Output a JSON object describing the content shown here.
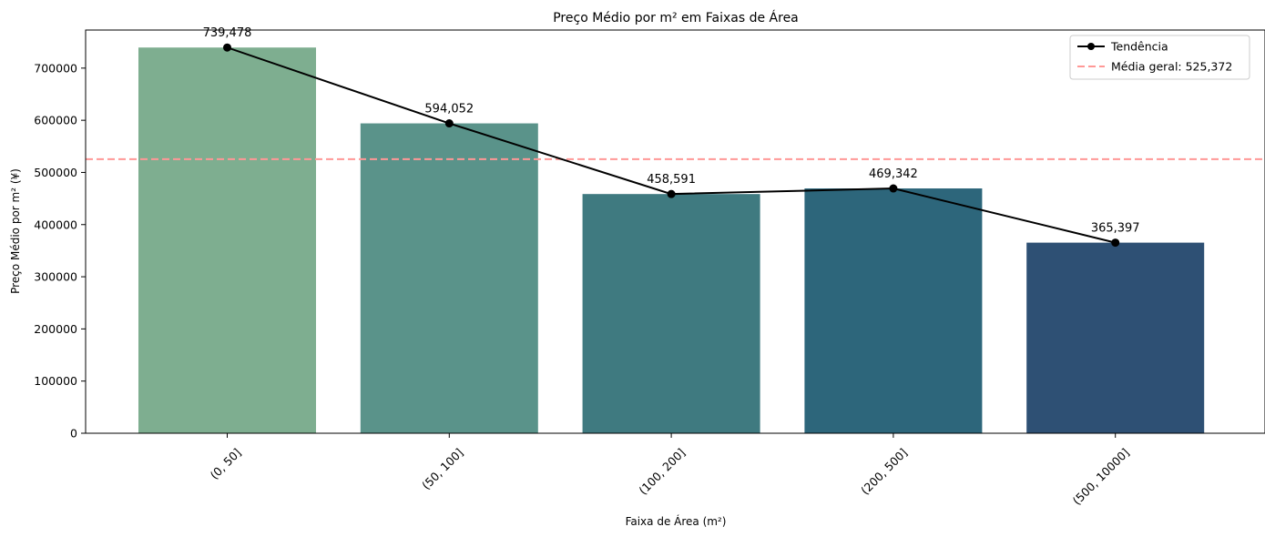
{
  "chart_data": {
    "type": "bar",
    "title": "Preço Médio por m² em Faixas de Área",
    "xlabel": "Faixa de Área (m²)",
    "ylabel": "Preço Médio por m² (¥)",
    "categories": [
      "(0, 50]",
      "(50, 100]",
      "(100, 200]",
      "(200, 500]",
      "(500, 10000]"
    ],
    "values": [
      739478,
      594052,
      458591,
      469342,
      365397
    ],
    "value_labels": [
      "739,478",
      "594,052",
      "458,591",
      "469,342",
      "365,397"
    ],
    "bar_colors": [
      "#7eae90",
      "#5a938a",
      "#3f7a80",
      "#2d667b",
      "#2e5074"
    ],
    "ylim": [
      0,
      773000
    ],
    "yticks": [
      0,
      100000,
      200000,
      300000,
      400000,
      500000,
      600000,
      700000
    ],
    "ytick_labels": [
      "0",
      "100000",
      "200000",
      "300000",
      "400000",
      "500000",
      "600000",
      "700000"
    ],
    "trend_line": {
      "name": "Tendência",
      "values": [
        739478,
        594052,
        458591,
        469342,
        365397
      ],
      "color": "#000000"
    },
    "reference_line": {
      "name": "Média geral: 525,372",
      "value": 525372,
      "color": "#ff9896",
      "style": "dashed"
    },
    "legend": {
      "placement": "top-right",
      "entries": [
        "Tendência",
        "Média geral: 525,372"
      ]
    },
    "grid": false
  }
}
